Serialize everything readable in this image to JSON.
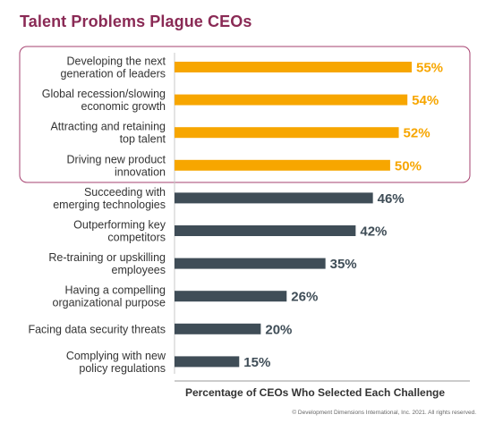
{
  "chart_data": {
    "type": "bar",
    "orientation": "horizontal",
    "title": "Talent Problems Plague CEOs",
    "xlabel": "Percentage of CEOs Who Selected Each Challenge",
    "ylabel": "",
    "xlim": [
      0,
      60
    ],
    "grid": false,
    "legend": "none",
    "categories": [
      [
        "Developing the next",
        "generation of leaders"
      ],
      [
        "Global recession/slowing",
        "economic growth"
      ],
      [
        "Attracting and retaining",
        "top talent"
      ],
      [
        "Driving new product",
        "innovation"
      ],
      [
        "Succeeding with",
        "emerging technologies"
      ],
      [
        "Outperforming key",
        "competitors"
      ],
      [
        "Re-training or upskilling",
        "employees"
      ],
      [
        "Having a compelling",
        "organizational purpose"
      ],
      [
        "Facing data security threats"
      ],
      [
        "Complying with new",
        "policy regulations"
      ]
    ],
    "values": [
      55,
      54,
      52,
      50,
      46,
      42,
      35,
      26,
      20,
      15
    ],
    "value_labels": [
      "55%",
      "54%",
      "52%",
      "50%",
      "46%",
      "42%",
      "35%",
      "26%",
      "20%",
      "15%"
    ],
    "highlighted_count": 4,
    "colors": {
      "highlight": "#f7a600",
      "normal": "#3f4d57",
      "highlight_box": "#a6416f",
      "title": "#8a2a55"
    }
  },
  "footer": {
    "copyright": "© Development Dimensions International, Inc. 2021. All rights reserved."
  }
}
